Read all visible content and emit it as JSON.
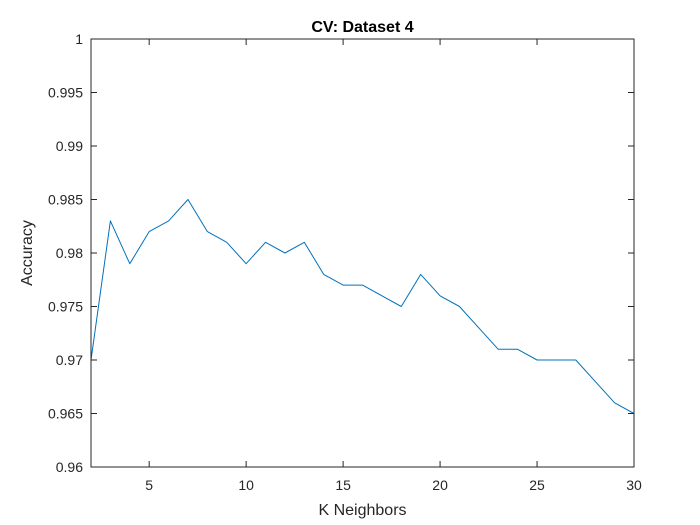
{
  "chart_data": {
    "type": "line",
    "title": "CV: Dataset 4",
    "xlabel": "K Neighbors",
    "ylabel": "Accuracy",
    "xlim": [
      2,
      30
    ],
    "ylim": [
      0.96,
      1
    ],
    "xticks": [
      5,
      10,
      15,
      20,
      25,
      30
    ],
    "yticks": [
      0.96,
      0.965,
      0.97,
      0.975,
      0.98,
      0.985,
      0.99,
      0.995,
      1
    ],
    "xtick_labels": [
      "5",
      "10",
      "15",
      "20",
      "25",
      "30"
    ],
    "ytick_labels": [
      "0.96",
      "0.965",
      "0.97",
      "0.975",
      "0.98",
      "0.985",
      "0.99",
      "0.995",
      "1"
    ],
    "grid": false,
    "series": [
      {
        "x": [
          2,
          3,
          4,
          5,
          6,
          7,
          8,
          9,
          10,
          11,
          12,
          13,
          14,
          15,
          16,
          17,
          18,
          19,
          20,
          21,
          22,
          23,
          24,
          25,
          26,
          27,
          28,
          29,
          30
        ],
        "values": [
          0.97,
          0.983,
          0.979,
          0.982,
          0.983,
          0.985,
          0.982,
          0.981,
          0.979,
          0.981,
          0.98,
          0.981,
          0.978,
          0.977,
          0.977,
          0.976,
          0.975,
          0.978,
          0.976,
          0.975,
          0.973,
          0.971,
          0.971,
          0.97,
          0.97,
          0.97,
          0.968,
          0.966,
          0.965
        ],
        "color": "#0072BD"
      }
    ]
  }
}
